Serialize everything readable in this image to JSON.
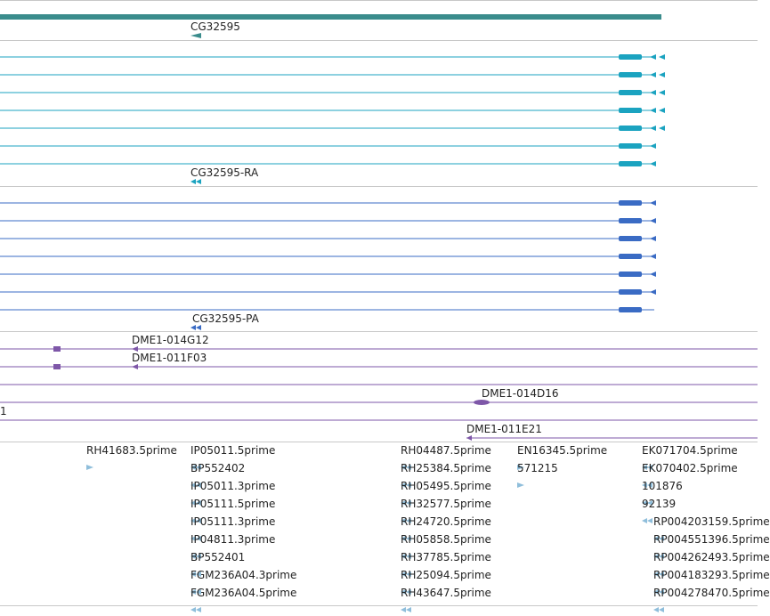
{
  "colors": {
    "gene": "#3a8c8c",
    "transcript_flybase": "#1ba3c0",
    "transcript_refseq": "#3a6bc4",
    "cdna_clone": "#7e57a8",
    "est": "#8fbedb",
    "separator": "#c8c8c8"
  },
  "gene_track": {
    "label": "CG32595"
  },
  "flybase_transcripts": {
    "label": "CG32595-RA",
    "row_count": 7
  },
  "refseq_transcripts": {
    "label": "CG32595-PA",
    "row_count": 7
  },
  "clone_track": {
    "labels": {
      "c1": "DME1-014G12",
      "c2": "DME1-011F03",
      "c3": "DME1-014D16",
      "c4": "1",
      "c5": "DME1-011E21"
    }
  },
  "est_track": {
    "columns": [
      {
        "labels": [
          "RH41683.5prime"
        ]
      },
      {
        "labels": [
          "IP05011.5prime",
          "BP552402",
          "IP05011.3prime",
          "IP05111.5prime",
          "IP05111.3prime",
          "IP04811.3prime",
          "BP552401",
          "FGM236A04.3prime",
          "FGM236A04.5prime"
        ]
      },
      {
        "labels": [
          "RH04487.5prime",
          "RH25384.5prime",
          "RH05495.5prime",
          "RH32577.5prime",
          "RH24720.5prime",
          "RH05858.5prime",
          "RH37785.5prime",
          "RH25094.5prime",
          "RH43647.5prime"
        ]
      },
      {
        "labels": [
          "EN16345.5prime",
          "571215"
        ]
      },
      {
        "labels": [
          "EK071704.5prime",
          "EK070402.5prime",
          "101876",
          "92139"
        ]
      },
      {
        "labels": [
          "RP004203159.5prime",
          "RP004551396.5prime",
          "RP004262493.5prime",
          "RP004183293.5prime",
          "RP004278470.5prime"
        ]
      }
    ]
  }
}
